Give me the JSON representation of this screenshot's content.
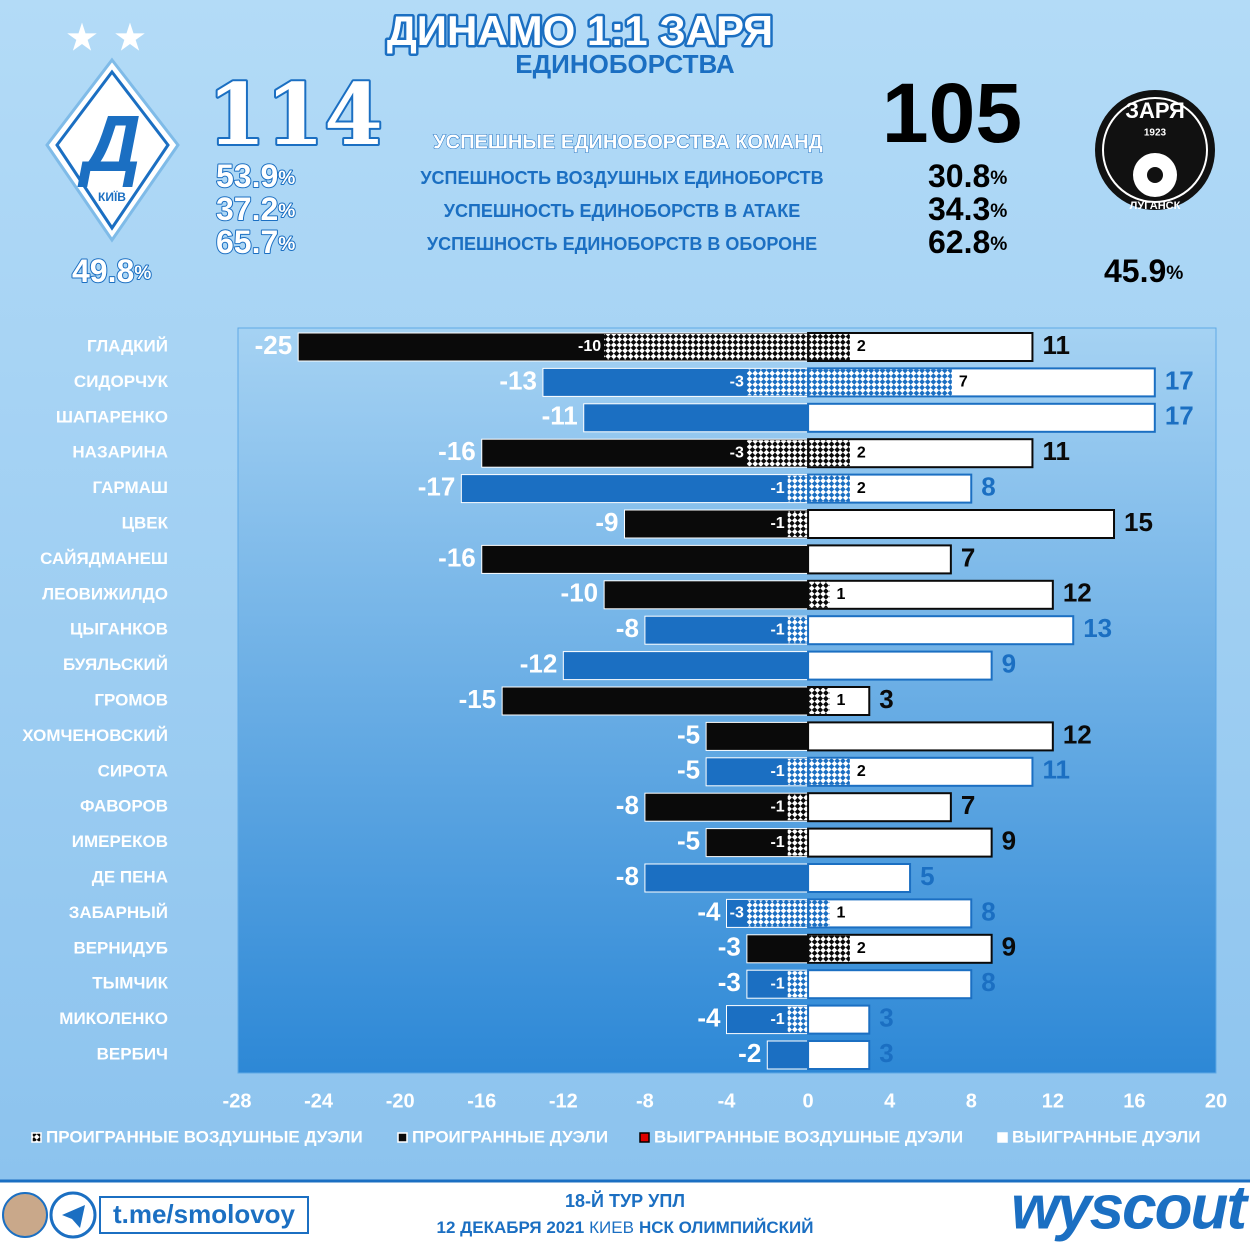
{
  "header": {
    "title": "ДИНАМО 1:1 ЗАРЯ",
    "subtitle": "ЕДИНОБОРСТВА",
    "stat_labels": [
      "УСПЕШНЫЕ ЕДИНОБОРСТВА КОМАНД",
      "УСПЕШНОСТЬ ВОЗДУШНЫХ ЕДИНОБОРСТВ",
      "УСПЕШНОСТЬ ЕДИНОБОРСТВ В АТАКЕ",
      "УСПЕШНОСТЬ ЕДИНОБОРСТВ В ОБОРОНЕ"
    ],
    "percent_sign": "%",
    "home": {
      "logo_text": "КИЇВ",
      "total": 114,
      "stats": [
        53.9,
        37.2,
        65.7
      ],
      "share": 49.8
    },
    "away": {
      "logo_text": [
        "ЗАРЯ",
        "1923",
        "ЛУГАНСК"
      ],
      "total": 105,
      "stats": [
        30.8,
        34.3,
        62.8
      ],
      "share": 45.9
    }
  },
  "chart_data": {
    "type": "diverging-bar",
    "categories": [
      "ГЛАДКИЙ",
      "СИДОРЧУК",
      "ШАПАРЕНКО",
      "НАЗАРИНА",
      "ГАРМАШ",
      "ЦВЕК",
      "САЙЯДМАНЕШ",
      "ЛЕОВИЖИЛДО",
      "ЦЫГАНКОВ",
      "БУЯЛЬСКИЙ",
      "ГРОМОВ",
      "ХОМЧЕНОВСКИЙ",
      "СИРОТА",
      "ФАВОРОВ",
      "ИМЕРЕКОВ",
      "ДЕ ПЕНА",
      "ЗАБАРНЫЙ",
      "ВЕРНИДУБ",
      "ТЫМЧИК",
      "МИКОЛЕНКО",
      "ВЕРБИЧ"
    ],
    "row_colors": [
      "#0a0a0a",
      "#1b6fc2",
      "#1b6fc2",
      "#0a0a0a",
      "#1b6fc2",
      "#0a0a0a",
      "#0a0a0a",
      "#0a0a0a",
      "#1b6fc2",
      "#1b6fc2",
      "#0a0a0a",
      "#0a0a0a",
      "#1b6fc2",
      "#0a0a0a",
      "#0a0a0a",
      "#1b6fc2",
      "#1b6fc2",
      "#0a0a0a",
      "#1b6fc2",
      "#1b6fc2",
      "#1b6fc2"
    ],
    "series": [
      {
        "name": "ПРОИГРАННЫЕ ВОЗДУШНЫЕ ДУЭЛИ",
        "values": [
          -10,
          -3,
          null,
          -3,
          -1,
          -1,
          null,
          null,
          -1,
          null,
          null,
          null,
          -1,
          -1,
          -1,
          null,
          -3,
          null,
          -1,
          -1,
          null
        ]
      },
      {
        "name": "ПРОИГРАННЫЕ ДУЭЛИ",
        "values": [
          -25,
          -13,
          -11,
          -16,
          -17,
          -9,
          -16,
          -10,
          -8,
          -12,
          -15,
          -5,
          -5,
          -8,
          -5,
          -8,
          -4,
          -3,
          -3,
          -4,
          -2
        ]
      },
      {
        "name": "ВЫИГРАННЫЕ ВОЗДУШНЫЕ ДУЭЛИ",
        "values": [
          2,
          7,
          null,
          2,
          2,
          null,
          null,
          1,
          null,
          null,
          1,
          null,
          2,
          null,
          null,
          null,
          1,
          2,
          null,
          null,
          null
        ]
      },
      {
        "name": "ВЫИГРАННЫЕ ДУЭЛИ",
        "values": [
          11,
          17,
          17,
          11,
          8,
          15,
          7,
          12,
          13,
          9,
          3,
          12,
          11,
          7,
          9,
          5,
          8,
          9,
          8,
          3,
          3
        ]
      }
    ],
    "xlim": [
      -28,
      20
    ],
    "xticks": [
      -28,
      -24,
      -20,
      -16,
      -12,
      -8,
      -4,
      0,
      4,
      8,
      12,
      16,
      20
    ]
  },
  "footer": {
    "link": "t.me/smolovoy",
    "round": "18-Й ТУР УПЛ",
    "date": "12 ДЕКАБРЯ 2021",
    "city": "КИЕВ",
    "venue": "НСК ОЛИМПИЙСКИЙ",
    "brand": "wyscout"
  }
}
